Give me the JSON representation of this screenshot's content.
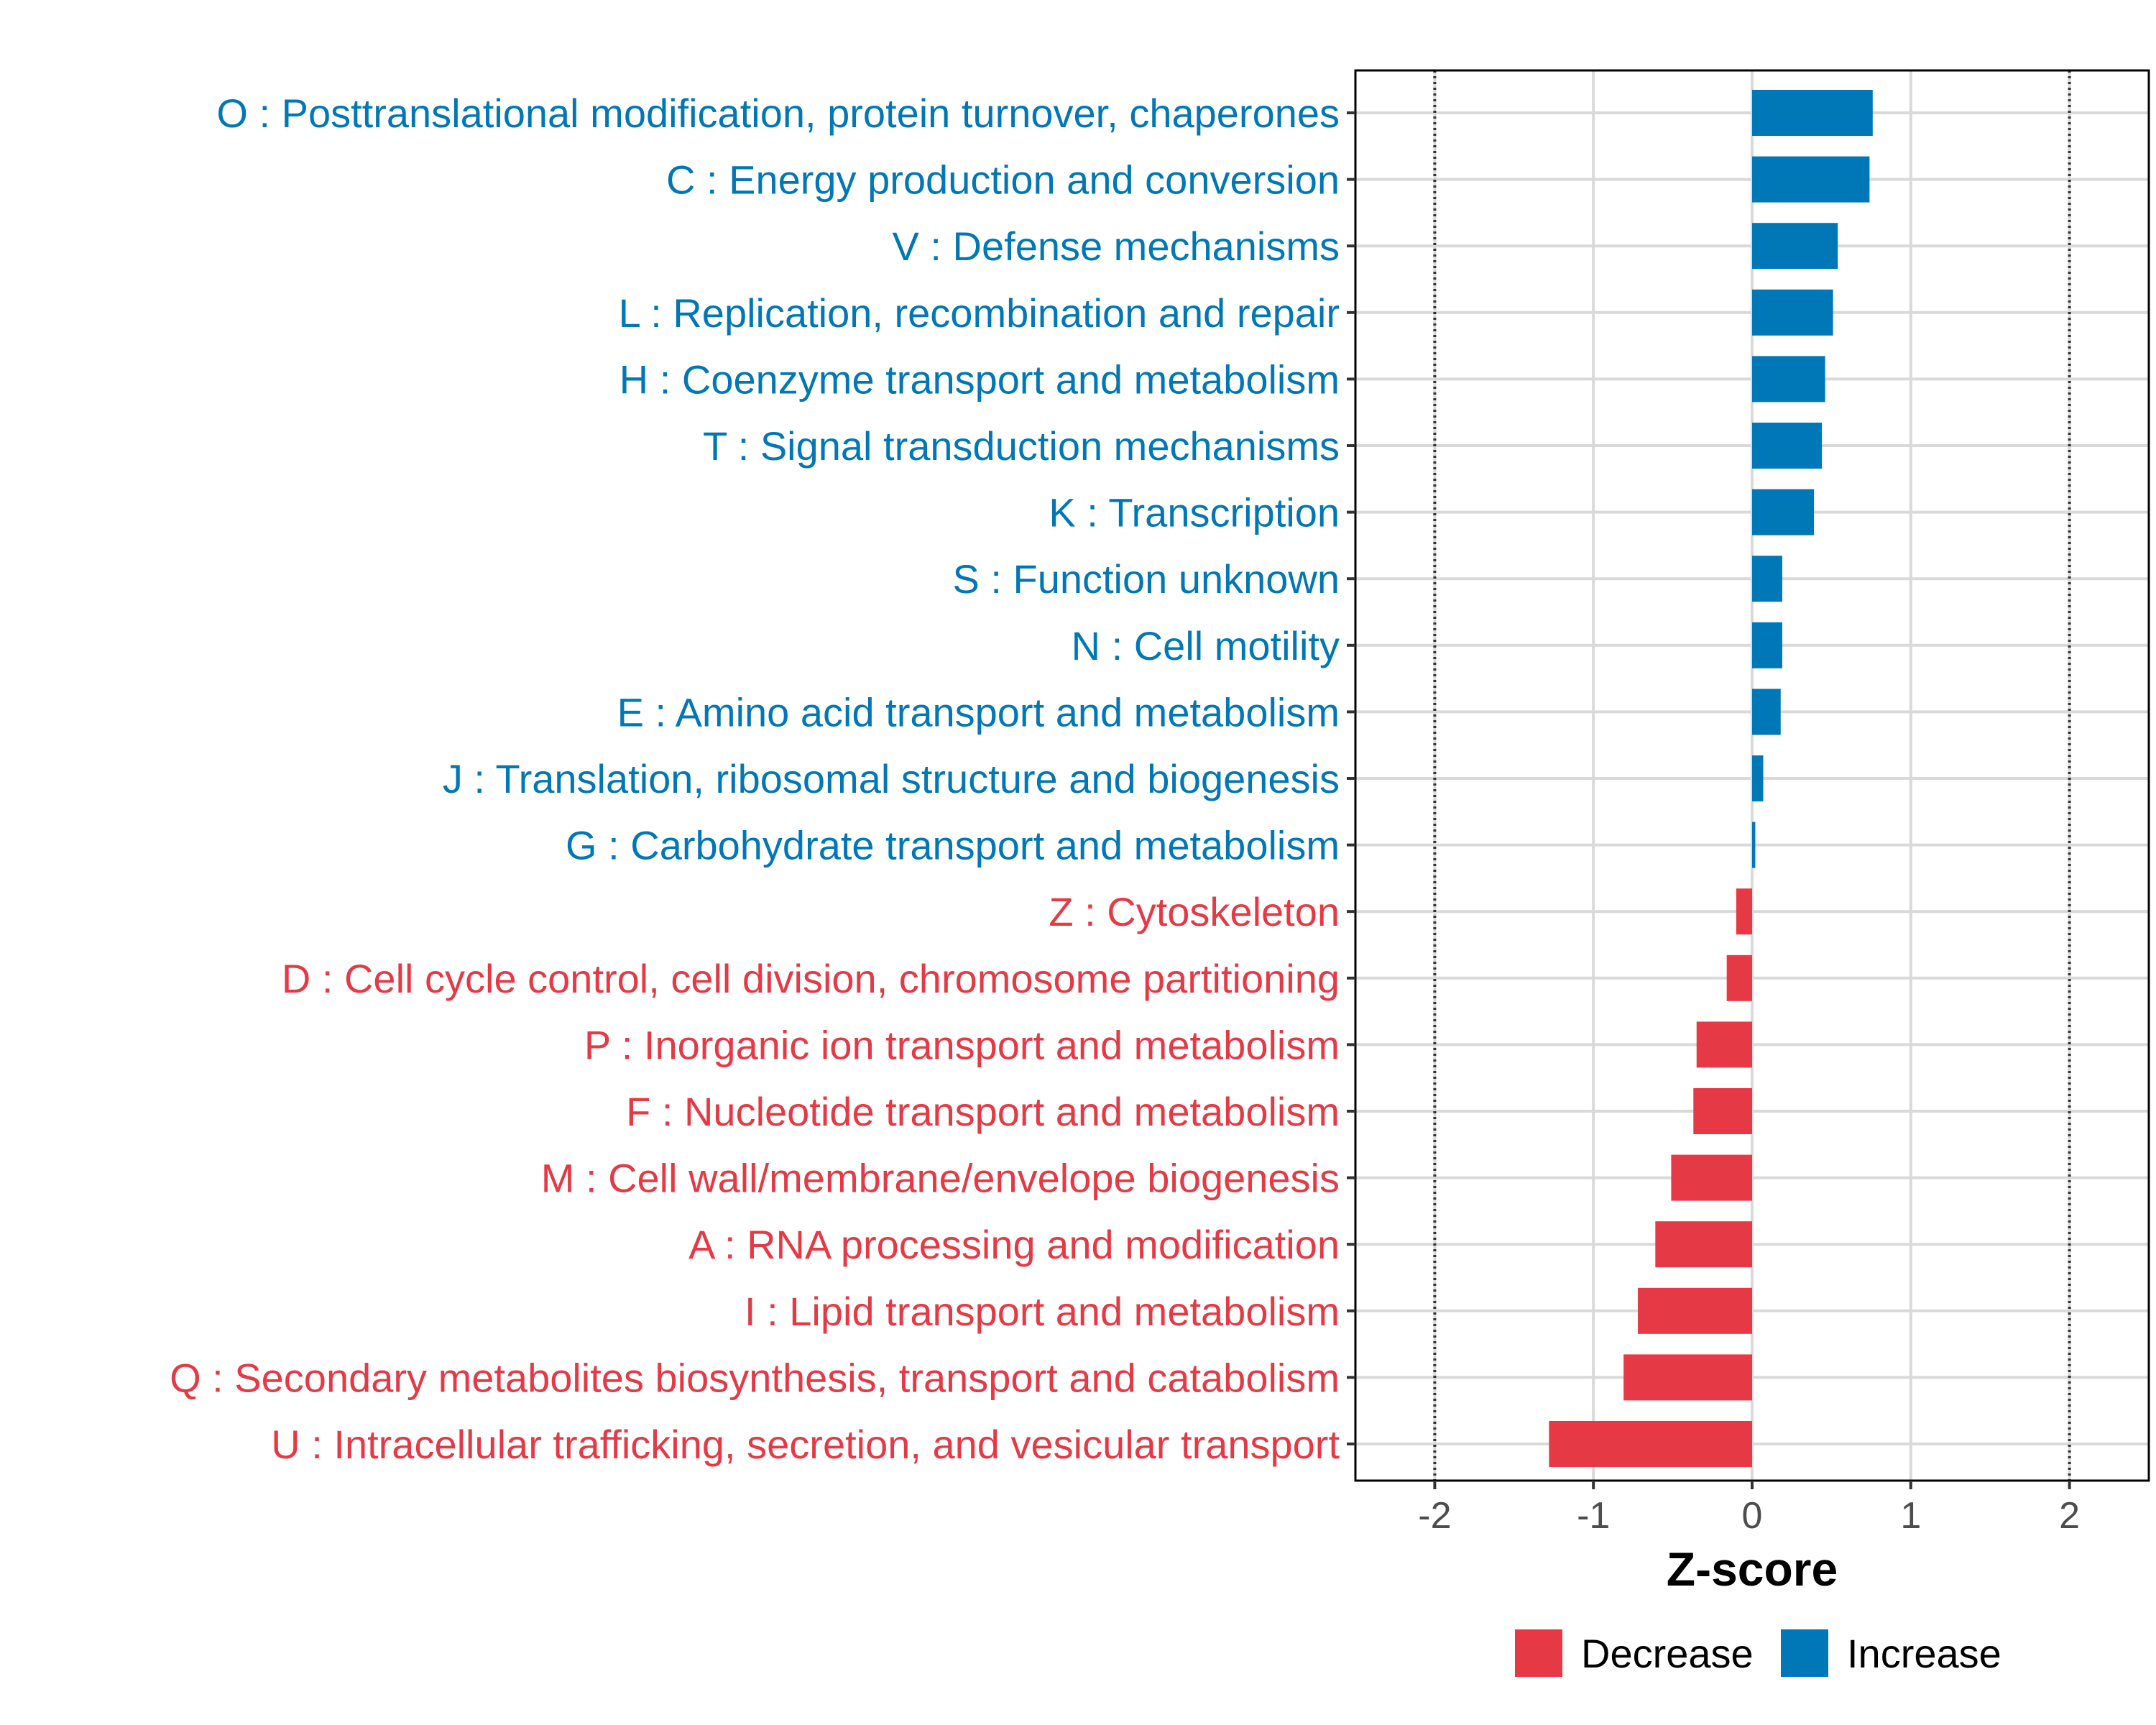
{
  "chart_data": {
    "type": "bar",
    "orientation": "horizontal",
    "xlabel": "Z-score",
    "xlim": [
      -2.5,
      2.5
    ],
    "x_ticks": [
      -2,
      -1,
      0,
      1,
      2
    ],
    "x_tick_labels": [
      "-2",
      "-1",
      "0",
      "1",
      "2"
    ],
    "reference_lines": [
      -2,
      2
    ],
    "categories": [
      {
        "label": "O : Posttranslational modification, protein turnover, chaperones",
        "value": 0.76,
        "group": "Increase"
      },
      {
        "label": "C : Energy production and conversion",
        "value": 0.74,
        "group": "Increase"
      },
      {
        "label": "V : Defense mechanisms",
        "value": 0.54,
        "group": "Increase"
      },
      {
        "label": "L : Replication, recombination and repair",
        "value": 0.51,
        "group": "Increase"
      },
      {
        "label": "H : Coenzyme transport and metabolism",
        "value": 0.46,
        "group": "Increase"
      },
      {
        "label": "T : Signal transduction mechanisms",
        "value": 0.44,
        "group": "Increase"
      },
      {
        "label": "K : Transcription",
        "value": 0.39,
        "group": "Increase"
      },
      {
        "label": "S : Function unknown",
        "value": 0.19,
        "group": "Increase"
      },
      {
        "label": "N : Cell motility",
        "value": 0.19,
        "group": "Increase"
      },
      {
        "label": "E : Amino acid transport and metabolism",
        "value": 0.18,
        "group": "Increase"
      },
      {
        "label": "J : Translation, ribosomal structure and biogenesis",
        "value": 0.07,
        "group": "Increase"
      },
      {
        "label": "G : Carbohydrate transport and metabolism",
        "value": 0.02,
        "group": "Increase"
      },
      {
        "label": "Z : Cytoskeleton",
        "value": -0.1,
        "group": "Decrease"
      },
      {
        "label": "D : Cell cycle control, cell division, chromosome partitioning",
        "value": -0.16,
        "group": "Decrease"
      },
      {
        "label": "P : Inorganic ion transport and metabolism",
        "value": -0.35,
        "group": "Decrease"
      },
      {
        "label": "F : Nucleotide transport and metabolism",
        "value": -0.37,
        "group": "Decrease"
      },
      {
        "label": "M : Cell wall/membrane/envelope biogenesis",
        "value": -0.51,
        "group": "Decrease"
      },
      {
        "label": "A : RNA processing and modification",
        "value": -0.61,
        "group": "Decrease"
      },
      {
        "label": "I : Lipid transport and metabolism",
        "value": -0.72,
        "group": "Decrease"
      },
      {
        "label": "Q : Secondary metabolites biosynthesis, transport and catabolism",
        "value": -0.81,
        "group": "Decrease"
      },
      {
        "label": "U : Intracellular trafficking, secretion, and vesicular transport",
        "value": -1.28,
        "group": "Decrease"
      }
    ],
    "legend": {
      "position": "bottom",
      "items": [
        {
          "label": "Decrease",
          "color": "#E63946"
        },
        {
          "label": "Increase",
          "color": "#0077B6"
        }
      ]
    },
    "colors": {
      "Decrease": "#E63946",
      "Increase": "#0077B6"
    }
  }
}
